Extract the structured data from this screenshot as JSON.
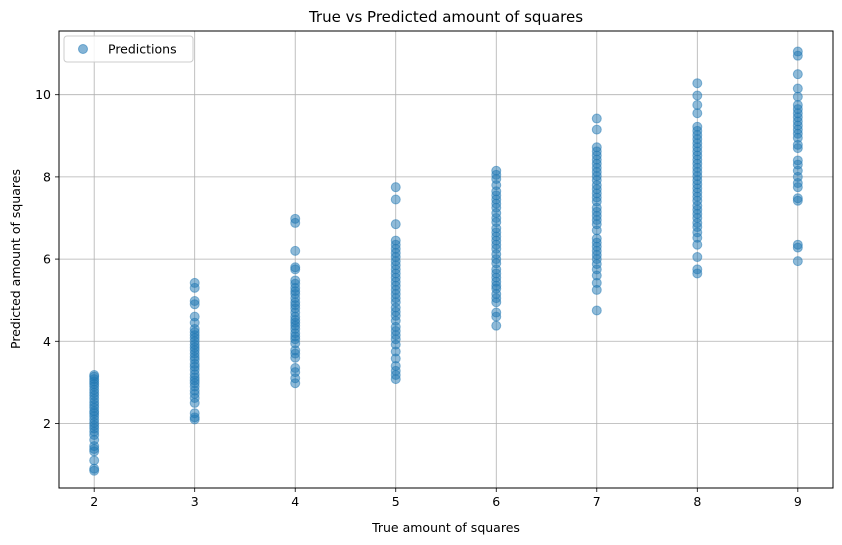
{
  "chart_data": {
    "type": "scatter",
    "title": "True vs Predicted amount of squares",
    "xlabel": "True amount of squares",
    "ylabel": "Predicted amount of squares",
    "xlim": [
      1.65,
      9.35
    ],
    "ylim": [
      0.43,
      11.55
    ],
    "xticks": [
      2,
      3,
      4,
      5,
      6,
      7,
      8,
      9
    ],
    "yticks": [
      2,
      4,
      6,
      8,
      10
    ],
    "grid": true,
    "legend": "top-left",
    "series": [
      {
        "name": "Predictions",
        "color": "#1f77b4",
        "points": [
          [
            2,
            0.9
          ],
          [
            2,
            0.85
          ],
          [
            2,
            1.1
          ],
          [
            2,
            1.32
          ],
          [
            2,
            1.38
          ],
          [
            2,
            1.45
          ],
          [
            2,
            1.6
          ],
          [
            2,
            1.72
          ],
          [
            2,
            1.8
          ],
          [
            2,
            1.88
          ],
          [
            2,
            1.95
          ],
          [
            2,
            2.02
          ],
          [
            2,
            2.1
          ],
          [
            2,
            2.18
          ],
          [
            2,
            2.25
          ],
          [
            2,
            2.3
          ],
          [
            2,
            2.38
          ],
          [
            2,
            2.45
          ],
          [
            2,
            2.52
          ],
          [
            2,
            2.6
          ],
          [
            2,
            2.68
          ],
          [
            2,
            2.75
          ],
          [
            2,
            2.82
          ],
          [
            2,
            2.9
          ],
          [
            2,
            2.96
          ],
          [
            2,
            3.02
          ],
          [
            2,
            3.08
          ],
          [
            2,
            3.14
          ],
          [
            2,
            3.18
          ],
          [
            3,
            2.1
          ],
          [
            3,
            2.15
          ],
          [
            3,
            2.25
          ],
          [
            3,
            2.5
          ],
          [
            3,
            2.62
          ],
          [
            3,
            2.72
          ],
          [
            3,
            2.8
          ],
          [
            3,
            2.9
          ],
          [
            3,
            2.98
          ],
          [
            3,
            3.05
          ],
          [
            3,
            3.12
          ],
          [
            3,
            3.2
          ],
          [
            3,
            3.3
          ],
          [
            3,
            3.38
          ],
          [
            3,
            3.45
          ],
          [
            3,
            3.55
          ],
          [
            3,
            3.62
          ],
          [
            3,
            3.7
          ],
          [
            3,
            3.78
          ],
          [
            3,
            3.85
          ],
          [
            3,
            3.92
          ],
          [
            3,
            4.0
          ],
          [
            3,
            4.08
          ],
          [
            3,
            4.15
          ],
          [
            3,
            4.22
          ],
          [
            3,
            4.3
          ],
          [
            3,
            4.45
          ],
          [
            3,
            4.6
          ],
          [
            3,
            4.9
          ],
          [
            3,
            4.98
          ],
          [
            3,
            5.3
          ],
          [
            3,
            5.42
          ],
          [
            4,
            2.98
          ],
          [
            4,
            3.1
          ],
          [
            4,
            3.25
          ],
          [
            4,
            3.35
          ],
          [
            4,
            3.6
          ],
          [
            4,
            3.7
          ],
          [
            4,
            3.78
          ],
          [
            4,
            3.95
          ],
          [
            4,
            4.05
          ],
          [
            4,
            4.12
          ],
          [
            4,
            4.2
          ],
          [
            4,
            4.3
          ],
          [
            4,
            4.38
          ],
          [
            4,
            4.45
          ],
          [
            4,
            4.52
          ],
          [
            4,
            4.6
          ],
          [
            4,
            4.7
          ],
          [
            4,
            4.8
          ],
          [
            4,
            4.88
          ],
          [
            4,
            4.95
          ],
          [
            4,
            5.05
          ],
          [
            4,
            5.15
          ],
          [
            4,
            5.22
          ],
          [
            4,
            5.3
          ],
          [
            4,
            5.4
          ],
          [
            4,
            5.48
          ],
          [
            4,
            5.75
          ],
          [
            4,
            5.8
          ],
          [
            4,
            6.2
          ],
          [
            4,
            6.88
          ],
          [
            4,
            6.98
          ],
          [
            5,
            3.08
          ],
          [
            5,
            3.18
          ],
          [
            5,
            3.28
          ],
          [
            5,
            3.4
          ],
          [
            5,
            3.58
          ],
          [
            5,
            3.75
          ],
          [
            5,
            3.92
          ],
          [
            5,
            4.05
          ],
          [
            5,
            4.15
          ],
          [
            5,
            4.25
          ],
          [
            5,
            4.35
          ],
          [
            5,
            4.5
          ],
          [
            5,
            4.62
          ],
          [
            5,
            4.72
          ],
          [
            5,
            4.82
          ],
          [
            5,
            4.95
          ],
          [
            5,
            5.05
          ],
          [
            5,
            5.15
          ],
          [
            5,
            5.25
          ],
          [
            5,
            5.35
          ],
          [
            5,
            5.45
          ],
          [
            5,
            5.55
          ],
          [
            5,
            5.65
          ],
          [
            5,
            5.75
          ],
          [
            5,
            5.85
          ],
          [
            5,
            5.95
          ],
          [
            5,
            6.05
          ],
          [
            5,
            6.15
          ],
          [
            5,
            6.25
          ],
          [
            5,
            6.35
          ],
          [
            5,
            6.45
          ],
          [
            5,
            6.85
          ],
          [
            5,
            7.45
          ],
          [
            5,
            7.75
          ],
          [
            6,
            4.38
          ],
          [
            6,
            4.6
          ],
          [
            6,
            4.7
          ],
          [
            6,
            4.95
          ],
          [
            6,
            5.05
          ],
          [
            6,
            5.15
          ],
          [
            6,
            5.28
          ],
          [
            6,
            5.35
          ],
          [
            6,
            5.45
          ],
          [
            6,
            5.55
          ],
          [
            6,
            5.65
          ],
          [
            6,
            5.75
          ],
          [
            6,
            5.9
          ],
          [
            6,
            6.0
          ],
          [
            6,
            6.12
          ],
          [
            6,
            6.25
          ],
          [
            6,
            6.35
          ],
          [
            6,
            6.45
          ],
          [
            6,
            6.55
          ],
          [
            6,
            6.65
          ],
          [
            6,
            6.75
          ],
          [
            6,
            6.9
          ],
          [
            6,
            7.0
          ],
          [
            6,
            7.12
          ],
          [
            6,
            7.25
          ],
          [
            6,
            7.35
          ],
          [
            6,
            7.45
          ],
          [
            6,
            7.55
          ],
          [
            6,
            7.65
          ],
          [
            6,
            7.8
          ],
          [
            6,
            7.95
          ],
          [
            6,
            8.05
          ],
          [
            6,
            8.15
          ],
          [
            7,
            4.75
          ],
          [
            7,
            5.25
          ],
          [
            7,
            5.42
          ],
          [
            7,
            5.6
          ],
          [
            7,
            5.75
          ],
          [
            7,
            5.88
          ],
          [
            7,
            6.0
          ],
          [
            7,
            6.1
          ],
          [
            7,
            6.2
          ],
          [
            7,
            6.3
          ],
          [
            7,
            6.4
          ],
          [
            7,
            6.5
          ],
          [
            7,
            6.7
          ],
          [
            7,
            6.85
          ],
          [
            7,
            6.95
          ],
          [
            7,
            7.05
          ],
          [
            7,
            7.15
          ],
          [
            7,
            7.25
          ],
          [
            7,
            7.4
          ],
          [
            7,
            7.5
          ],
          [
            7,
            7.6
          ],
          [
            7,
            7.7
          ],
          [
            7,
            7.8
          ],
          [
            7,
            7.92
          ],
          [
            7,
            8.02
          ],
          [
            7,
            8.12
          ],
          [
            7,
            8.22
          ],
          [
            7,
            8.32
          ],
          [
            7,
            8.42
          ],
          [
            7,
            8.52
          ],
          [
            7,
            8.62
          ],
          [
            7,
            8.72
          ],
          [
            7,
            9.15
          ],
          [
            7,
            9.42
          ],
          [
            8,
            5.65
          ],
          [
            8,
            5.75
          ],
          [
            8,
            6.05
          ],
          [
            8,
            6.35
          ],
          [
            8,
            6.52
          ],
          [
            8,
            6.65
          ],
          [
            8,
            6.78
          ],
          [
            8,
            6.88
          ],
          [
            8,
            7.0
          ],
          [
            8,
            7.1
          ],
          [
            8,
            7.2
          ],
          [
            8,
            7.3
          ],
          [
            8,
            7.42
          ],
          [
            8,
            7.52
          ],
          [
            8,
            7.62
          ],
          [
            8,
            7.72
          ],
          [
            8,
            7.82
          ],
          [
            8,
            7.92
          ],
          [
            8,
            8.02
          ],
          [
            8,
            8.12
          ],
          [
            8,
            8.22
          ],
          [
            8,
            8.32
          ],
          [
            8,
            8.42
          ],
          [
            8,
            8.52
          ],
          [
            8,
            8.62
          ],
          [
            8,
            8.72
          ],
          [
            8,
            8.82
          ],
          [
            8,
            8.92
          ],
          [
            8,
            9.02
          ],
          [
            8,
            9.12
          ],
          [
            8,
            9.22
          ],
          [
            8,
            9.55
          ],
          [
            8,
            9.75
          ],
          [
            8,
            9.98
          ],
          [
            8,
            10.28
          ],
          [
            9,
            5.95
          ],
          [
            9,
            6.28
          ],
          [
            9,
            6.35
          ],
          [
            9,
            7.42
          ],
          [
            9,
            7.48
          ],
          [
            9,
            7.75
          ],
          [
            9,
            7.85
          ],
          [
            9,
            8.0
          ],
          [
            9,
            8.15
          ],
          [
            9,
            8.3
          ],
          [
            9,
            8.4
          ],
          [
            9,
            8.7
          ],
          [
            9,
            8.78
          ],
          [
            9,
            8.95
          ],
          [
            9,
            9.05
          ],
          [
            9,
            9.15
          ],
          [
            9,
            9.25
          ],
          [
            9,
            9.35
          ],
          [
            9,
            9.45
          ],
          [
            9,
            9.55
          ],
          [
            9,
            9.65
          ],
          [
            9,
            9.75
          ],
          [
            9,
            9.95
          ],
          [
            9,
            10.15
          ],
          [
            9,
            10.5
          ],
          [
            9,
            10.95
          ],
          [
            9,
            11.05
          ]
        ]
      }
    ]
  }
}
